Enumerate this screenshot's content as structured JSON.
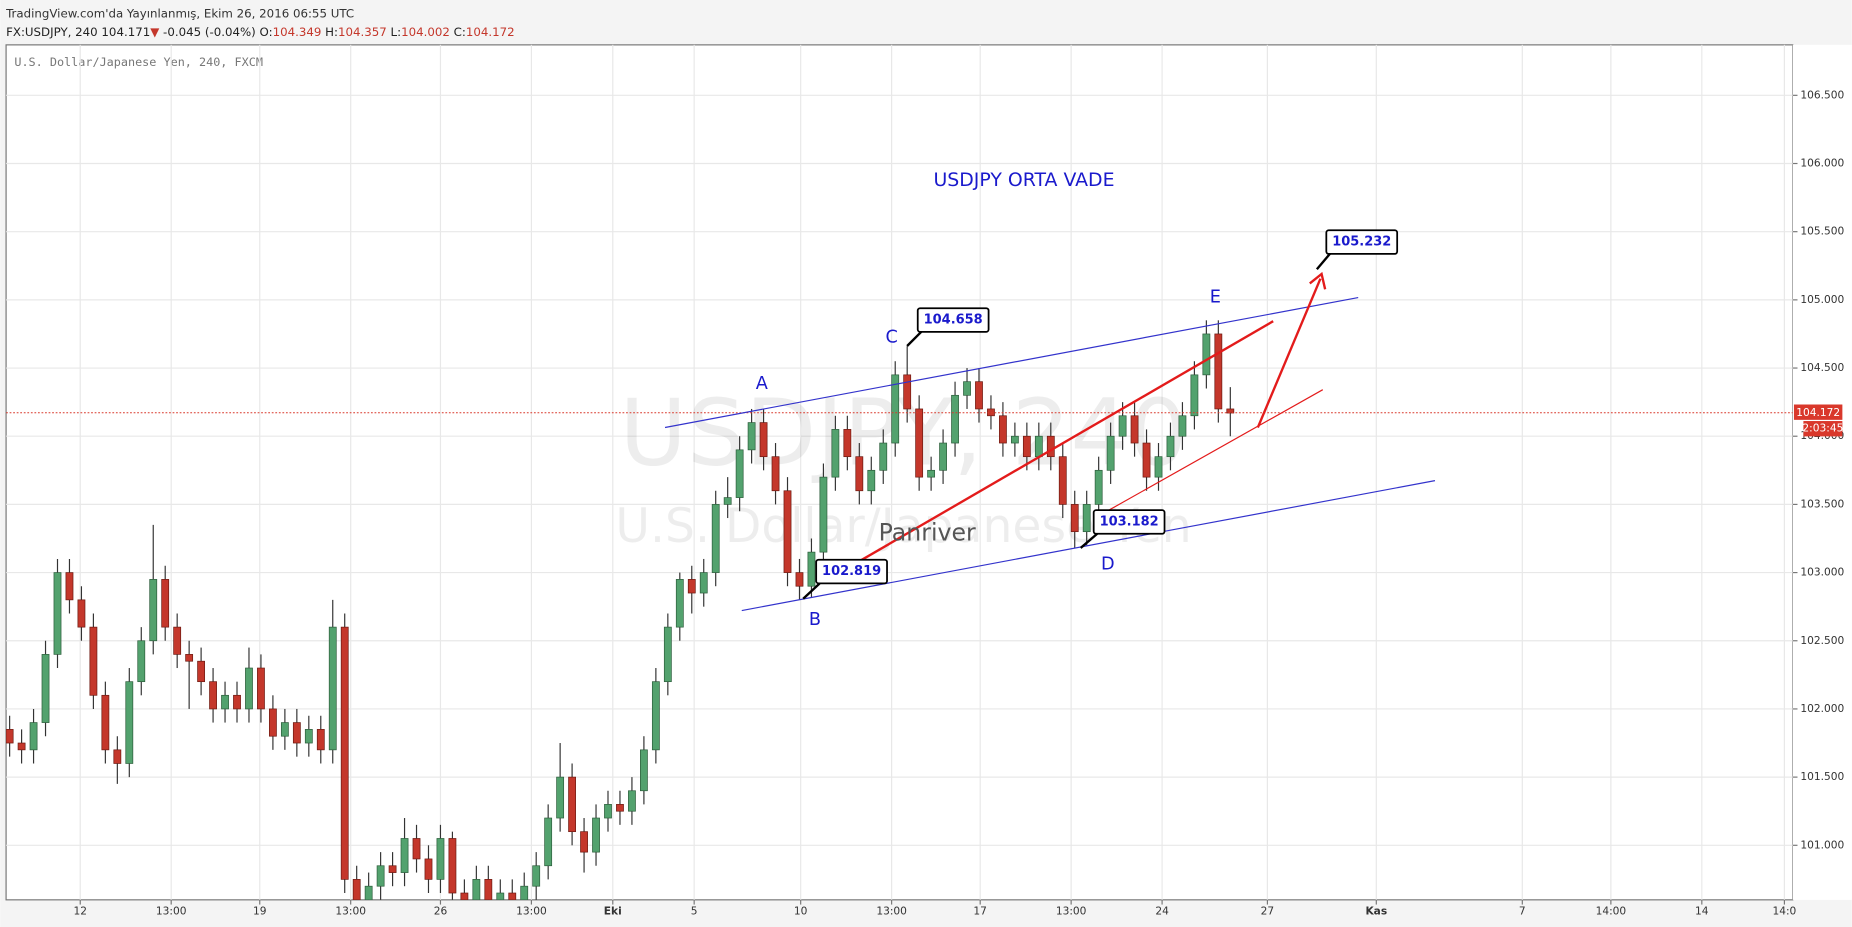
{
  "header": {
    "published": "TradingView.com'da Yayınlanmış, Ekim 26, 2016 06:55 UTC",
    "symbol": "FX:USDJPY, 240",
    "last": 104.171,
    "arrow": "▼",
    "change": "-0.045",
    "change_pct": "(-0.04%)",
    "ohlc": [
      {
        "label": "O:",
        "value": 104.349
      },
      {
        "label": "H:",
        "value": 104.357
      },
      {
        "label": "L:",
        "value": 104.002
      },
      {
        "label": "C:",
        "value": 104.172
      }
    ]
  },
  "chart_data": {
    "type": "candlestick",
    "legend": "U.S. Dollar/Japanese Yen, 240, FXCM",
    "title": "USDJPY  ORTA VADE",
    "watermark": [
      "USDJPY, 240",
      "U.S. Dollar/Japanese Yen"
    ],
    "author": "Panriver",
    "x": [
      0,
      1,
      2,
      3,
      4,
      5,
      6,
      7,
      8,
      9,
      10,
      11,
      12,
      13,
      14,
      15,
      16,
      17,
      18,
      19,
      20,
      21,
      22,
      23,
      24,
      25,
      26,
      27,
      28,
      29,
      30,
      31,
      32,
      33,
      34,
      35,
      36,
      37,
      38,
      39,
      40,
      41,
      42,
      43,
      44,
      45,
      46,
      47,
      48,
      49,
      50,
      51,
      52,
      53,
      54,
      55,
      56,
      57,
      58,
      59,
      60,
      61,
      62,
      63,
      64,
      65,
      66,
      67,
      68,
      69,
      70,
      71,
      72,
      73,
      74,
      75,
      76,
      77,
      78,
      79,
      80,
      81,
      82,
      83,
      84,
      85,
      86,
      87,
      88,
      89,
      90,
      91,
      92,
      93,
      94,
      95,
      96,
      97,
      98,
      99,
      100,
      101,
      102
    ],
    "open": [
      101.85,
      101.75,
      101.7,
      101.9,
      102.4,
      103.0,
      102.8,
      102.6,
      102.1,
      101.7,
      101.6,
      102.2,
      102.5,
      102.95,
      102.6,
      102.4,
      102.35,
      102.2,
      102.0,
      102.1,
      102.0,
      102.3,
      102.0,
      101.8,
      101.9,
      101.75,
      101.85,
      101.7,
      102.6,
      100.75,
      100.6,
      100.7,
      100.85,
      100.8,
      101.05,
      100.9,
      100.75,
      101.05,
      100.65,
      100.6,
      100.75,
      100.6,
      100.65,
      100.6,
      100.7,
      100.85,
      101.2,
      101.5,
      101.1,
      100.95,
      101.2,
      101.3,
      101.25,
      101.4,
      101.7,
      102.2,
      102.6,
      102.95,
      102.85,
      103.0,
      103.5,
      103.55,
      103.9,
      104.1,
      103.85,
      103.6,
      103.0,
      102.9,
      103.15,
      103.7,
      104.05,
      103.85,
      103.6,
      103.75,
      103.95,
      104.45,
      104.2,
      103.7,
      103.75,
      103.95,
      104.3,
      104.4,
      104.2,
      104.15,
      103.95,
      104.0,
      103.85,
      104.0,
      103.85,
      103.5,
      103.3,
      103.5,
      103.75,
      104.0,
      104.15,
      103.95,
      103.7,
      103.85,
      104.0,
      104.15,
      104.45,
      104.75,
      104.2
    ],
    "high": [
      101.95,
      101.85,
      102.0,
      102.5,
      103.1,
      103.1,
      102.9,
      102.7,
      102.2,
      101.8,
      102.3,
      102.6,
      103.35,
      103.05,
      102.7,
      102.5,
      102.45,
      102.3,
      102.2,
      102.2,
      102.45,
      102.4,
      102.1,
      102.0,
      102.0,
      101.95,
      101.95,
      102.8,
      102.7,
      100.85,
      100.8,
      100.95,
      100.95,
      101.2,
      101.15,
      101.0,
      101.15,
      101.1,
      100.75,
      100.85,
      100.85,
      100.75,
      100.75,
      100.8,
      100.95,
      101.3,
      101.75,
      101.6,
      101.2,
      101.3,
      101.4,
      101.4,
      101.5,
      101.8,
      102.3,
      102.7,
      103.0,
      103.05,
      103.1,
      103.6,
      103.7,
      104.0,
      104.2,
      104.2,
      103.95,
      103.7,
      103.1,
      103.25,
      103.8,
      104.15,
      104.15,
      103.95,
      103.85,
      104.05,
      104.55,
      104.66,
      104.3,
      103.85,
      104.05,
      104.4,
      104.5,
      104.5,
      104.3,
      104.25,
      104.1,
      104.1,
      104.1,
      104.1,
      103.95,
      103.6,
      103.6,
      103.85,
      104.1,
      104.25,
      104.25,
      104.05,
      103.95,
      104.1,
      104.25,
      104.55,
      104.85,
      104.85,
      104.36
    ],
    "low": [
      101.65,
      101.6,
      101.6,
      101.8,
      102.3,
      102.7,
      102.5,
      102.0,
      101.6,
      101.45,
      101.5,
      102.1,
      102.4,
      102.5,
      102.3,
      102.0,
      102.1,
      101.9,
      101.9,
      101.9,
      101.9,
      101.9,
      101.7,
      101.7,
      101.65,
      101.65,
      101.6,
      101.6,
      100.65,
      100.6,
      100.6,
      100.6,
      100.7,
      100.7,
      100.8,
      100.65,
      100.65,
      100.6,
      100.6,
      100.6,
      100.6,
      100.6,
      100.6,
      100.6,
      100.6,
      100.75,
      101.1,
      101.0,
      100.8,
      100.85,
      101.1,
      101.15,
      101.15,
      101.3,
      101.6,
      102.1,
      102.5,
      102.7,
      102.75,
      102.9,
      103.4,
      103.45,
      103.8,
      103.75,
      103.5,
      102.9,
      102.8,
      102.82,
      103.05,
      103.6,
      103.75,
      103.5,
      103.5,
      103.65,
      103.85,
      104.1,
      103.6,
      103.6,
      103.65,
      103.85,
      104.2,
      104.1,
      104.05,
      103.85,
      103.85,
      103.75,
      103.75,
      103.75,
      103.4,
      103.18,
      103.2,
      103.4,
      103.65,
      103.9,
      103.85,
      103.6,
      103.6,
      103.75,
      103.9,
      104.05,
      104.35,
      104.1,
      104.0
    ],
    "close": [
      101.75,
      101.7,
      101.9,
      102.4,
      103.0,
      102.8,
      102.6,
      102.1,
      101.7,
      101.6,
      102.2,
      102.5,
      102.95,
      102.6,
      102.4,
      102.35,
      102.2,
      102.0,
      102.1,
      102.0,
      102.3,
      102.0,
      101.8,
      101.9,
      101.75,
      101.85,
      101.7,
      102.6,
      100.75,
      100.6,
      100.7,
      100.85,
      100.8,
      101.05,
      100.9,
      100.75,
      101.05,
      100.65,
      100.6,
      100.75,
      100.6,
      100.65,
      100.6,
      100.7,
      100.85,
      101.2,
      101.5,
      101.1,
      100.95,
      101.2,
      101.3,
      101.25,
      101.4,
      101.7,
      102.2,
      102.6,
      102.95,
      102.85,
      103.0,
      103.5,
      103.55,
      103.9,
      104.1,
      103.85,
      103.6,
      103.0,
      102.9,
      103.15,
      103.7,
      104.05,
      103.85,
      103.6,
      103.75,
      103.95,
      104.45,
      104.2,
      103.7,
      103.75,
      103.95,
      104.3,
      104.4,
      104.2,
      104.15,
      103.95,
      104.0,
      103.85,
      104.0,
      103.85,
      103.5,
      103.3,
      103.5,
      103.75,
      104.0,
      104.15,
      103.95,
      103.7,
      103.85,
      104.0,
      104.15,
      104.45,
      104.75,
      104.2,
      104.17
    ],
    "up_color": "#53a26e",
    "down_color": "#c4372b",
    "xlim": [
      0,
      149
    ],
    "xticks": [
      {
        "value": 5.9,
        "label": "12"
      },
      {
        "value": 13.5,
        "label": "13:00"
      },
      {
        "value": 20.9,
        "label": "19"
      },
      {
        "value": 28.5,
        "label": "13:00"
      },
      {
        "value": 36,
        "label": "26"
      },
      {
        "value": 43.6,
        "label": "13:00"
      },
      {
        "value": 50.4,
        "label": "Eki"
      },
      {
        "value": 57.2,
        "label": "5"
      },
      {
        "value": 66.1,
        "label": "10"
      },
      {
        "value": 73.7,
        "label": "13:00"
      },
      {
        "value": 81.1,
        "label": "17"
      },
      {
        "value": 88.7,
        "label": "13:00"
      },
      {
        "value": 96.3,
        "label": "24"
      },
      {
        "value": 105.1,
        "label": "27"
      },
      {
        "value": 114.2,
        "label": "Kas"
      },
      {
        "value": 126.4,
        "label": "7"
      },
      {
        "value": 133.8,
        "label": "14:00"
      },
      {
        "value": 141.4,
        "label": "14"
      },
      {
        "value": 148.3,
        "label": "14:0"
      }
    ],
    "ylim": [
      100.6,
      106.87
    ],
    "yticks": [
      {
        "value": 101,
        "label": "101.000"
      },
      {
        "value": 101.5,
        "label": "101.500"
      },
      {
        "value": 102,
        "label": "102.000"
      },
      {
        "value": 102.5,
        "label": "102.500"
      },
      {
        "value": 103,
        "label": "103.000"
      },
      {
        "value": 103.5,
        "label": "103.500"
      },
      {
        "value": 104,
        "label": "104.000"
      },
      {
        "value": 104.5,
        "label": "104.500"
      },
      {
        "value": 105,
        "label": "105.000"
      },
      {
        "value": 105.5,
        "label": "105.500"
      },
      {
        "value": 106,
        "label": "106.000"
      },
      {
        "value": 106.5,
        "label": "106.500"
      }
    ],
    "grid": true,
    "current_price": 104.172,
    "countdown": "2:03:45",
    "annotations": {
      "points": [
        "A",
        "B",
        "C",
        "D",
        "E"
      ],
      "callouts": [
        104.658,
        102.819,
        103.182,
        105.232
      ]
    }
  }
}
